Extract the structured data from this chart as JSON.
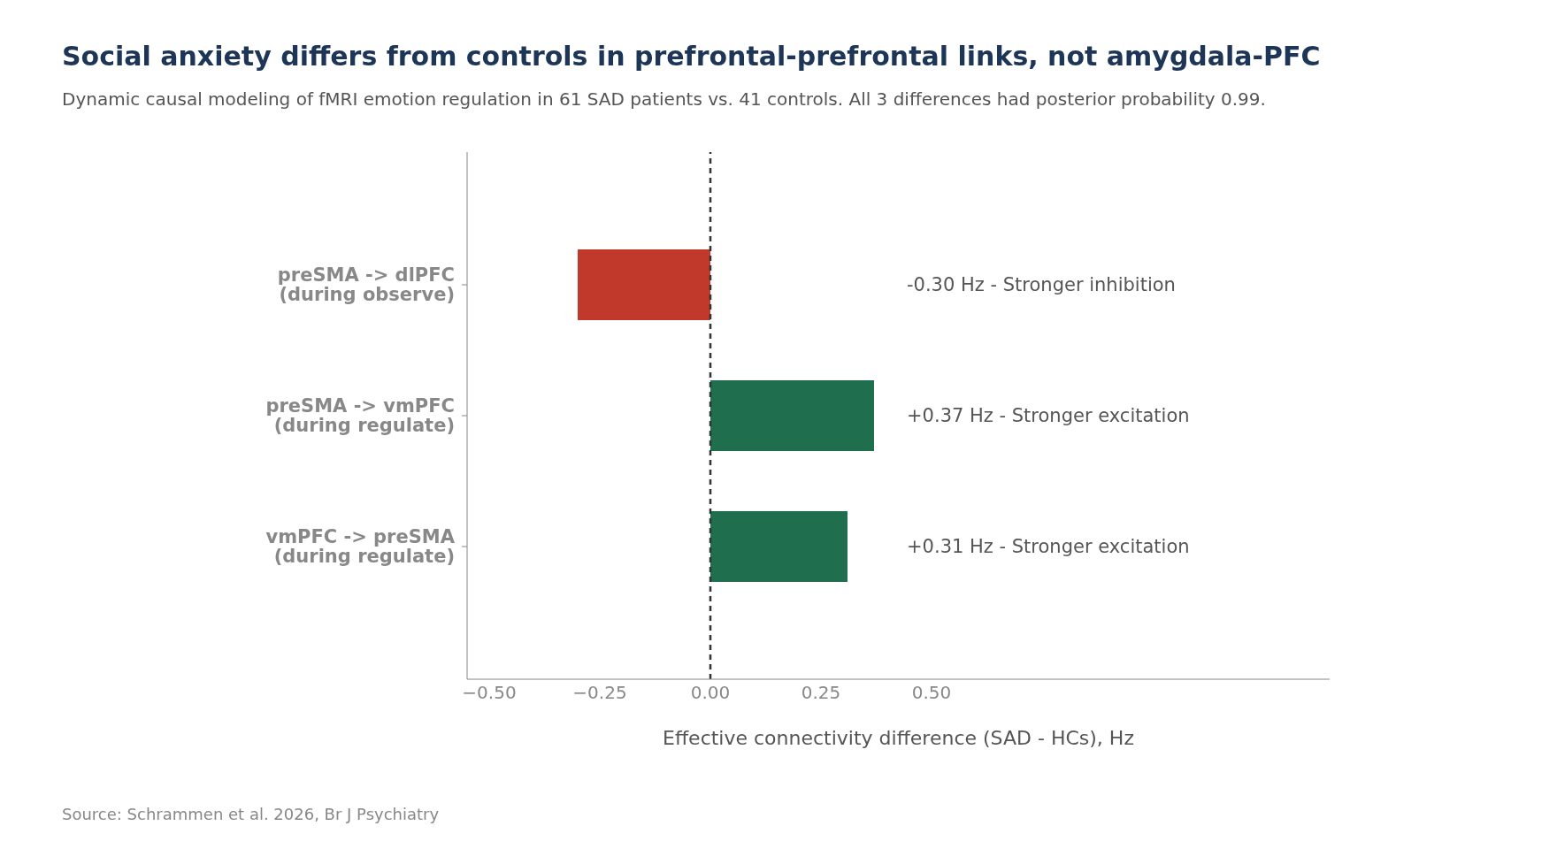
{
  "chart_data": {
    "type": "bar",
    "orientation": "horizontal",
    "title": "Social anxiety differs from controls in prefrontal-prefrontal links, not amygdala-PFC",
    "subtitle": "Dynamic causal modeling of fMRI emotion regulation in 61 SAD patients vs. 41 controls. All 3 differences had posterior probability 0.99.",
    "xlabel": "Effective connectivity difference (SAD - HCs), Hz",
    "categories": [
      "preSMA -> dlPFC\n(during observe)",
      "preSMA -> vmPFC\n(during regulate)",
      "vmPFC -> preSMA\n(during regulate)"
    ],
    "values": [
      -0.3,
      0.37,
      0.31
    ],
    "colors": [
      "#c0392b",
      "#1f6e4e",
      "#1f6e4e"
    ],
    "xlim": [
      -0.55,
      1.4
    ],
    "xticks": [
      {
        "value": -0.5,
        "label": "−0.50"
      },
      {
        "value": -0.25,
        "label": "−0.25"
      },
      {
        "value": 0,
        "label": "0.00"
      },
      {
        "value": 0.25,
        "label": "0.25"
      },
      {
        "value": 0.5,
        "label": "0.50"
      }
    ],
    "ref_lines": [
      {
        "axis": "x",
        "value": 0,
        "color": "#333333",
        "line_style": "dashed"
      }
    ],
    "annotations": [
      "-0.30 Hz - Stronger inhibition",
      "+0.37 Hz - Stronger excitation",
      "+0.31 Hz - Stronger excitation",
      "Source: Schrammen et al. 2026, Br J Psychiatry"
    ],
    "grid": false,
    "legend": false
  }
}
